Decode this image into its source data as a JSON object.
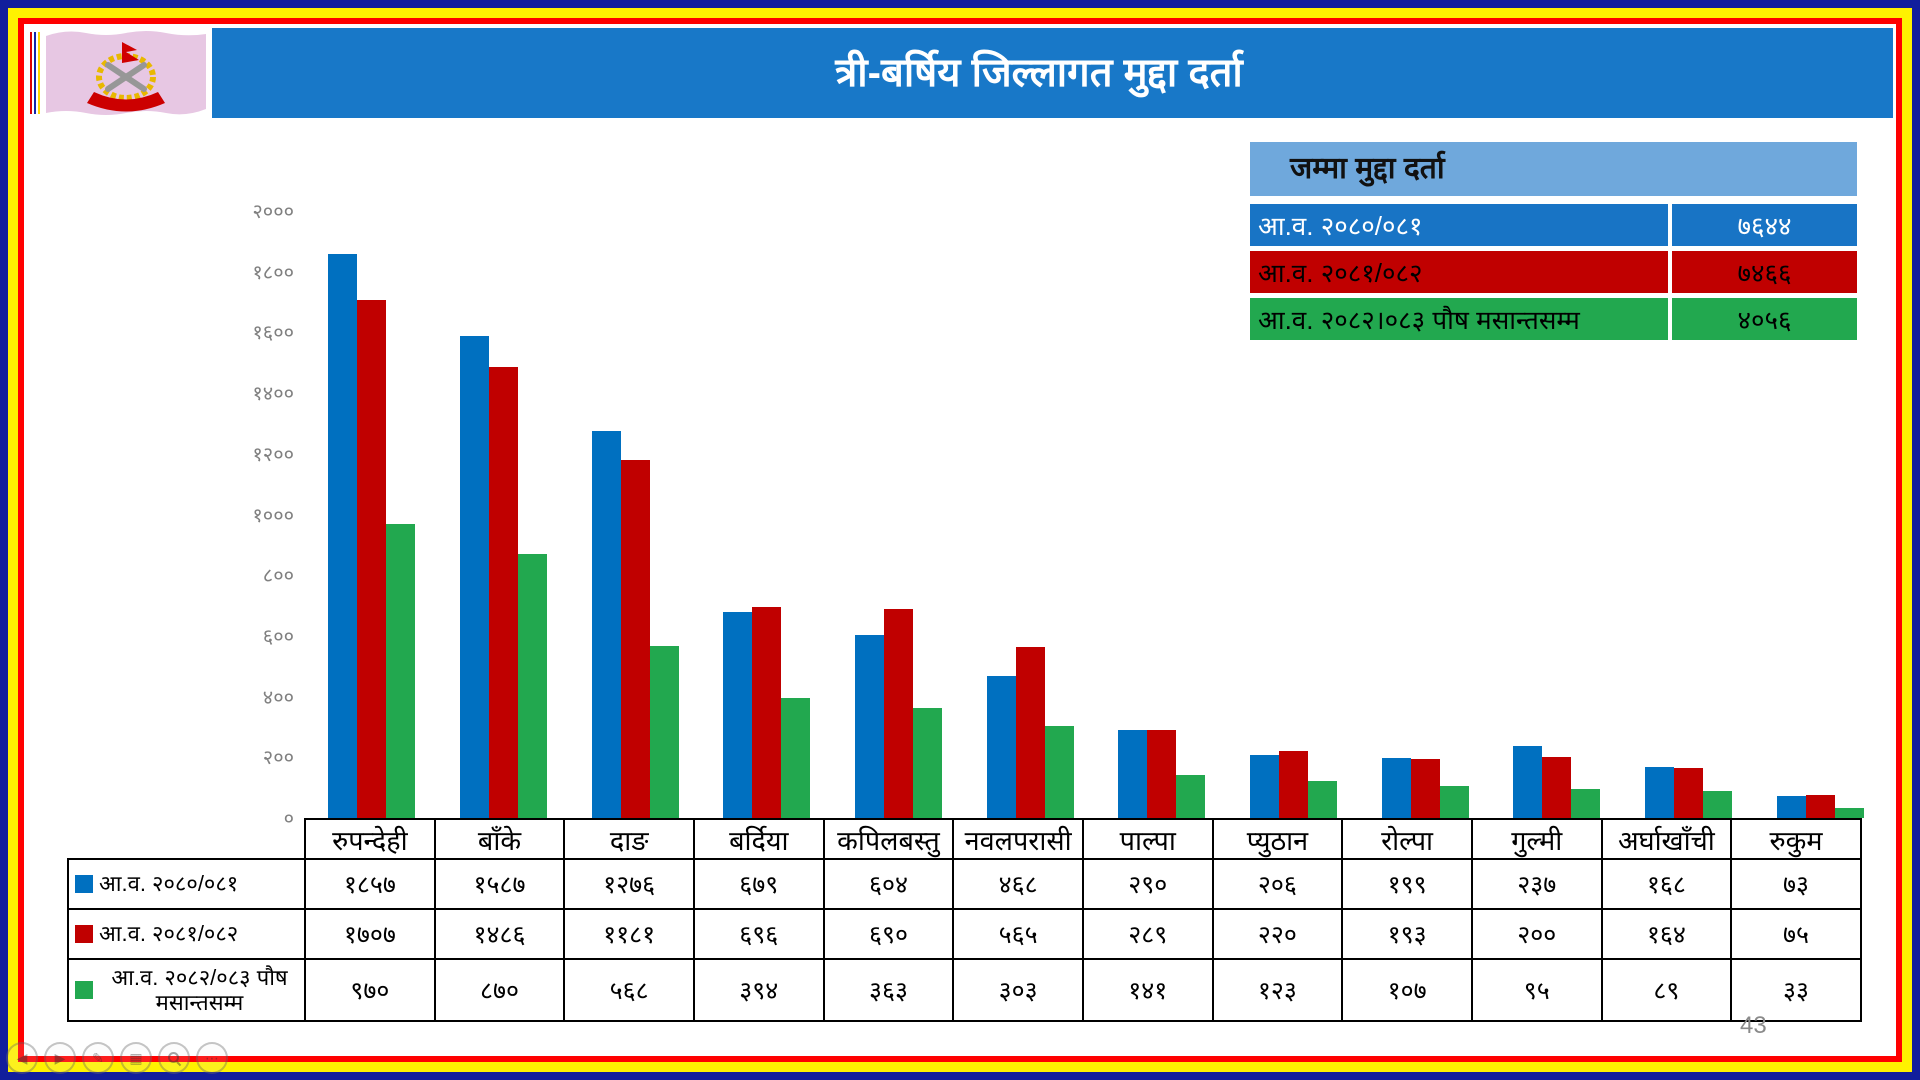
{
  "title": "त्री-बर्षिय जिल्लागत मुद्दा दर्ता",
  "page_number": "43",
  "colors": {
    "border_navy": "#121E9C",
    "border_yellow": "#FFF200",
    "border_red": "#FF0000",
    "banner_blue": "#1878C8",
    "series_blue": "#0070C0",
    "series_red": "#C00000",
    "series_green": "#22A84F",
    "summary_header_bg": "#6FA8DC",
    "axis_label_gray": "#808080"
  },
  "logo": {
    "name": "nepal-police-flag",
    "flag_color": "#E7C7E3",
    "stripe_colors": [
      "#E00000",
      "#1226AA",
      "#FFD800"
    ]
  },
  "summary_table": {
    "header": "जम्मा मुद्दा दर्ता",
    "rows": [
      {
        "label": "आ.व. २०८०/०८१",
        "value": "७६४४",
        "bg": "#1874C5",
        "text": "#FFFFFF"
      },
      {
        "label": "आ.व. २०८१/०८२",
        "value": "७४६६",
        "bg": "#C00000",
        "text": "#000000"
      },
      {
        "label": "आ.व. २०८२।०८३ पौष मसान्तसम्म",
        "value": "४०५६",
        "bg": "#22A84F",
        "text": "#000000"
      }
    ]
  },
  "chart_data": {
    "type": "bar",
    "title": "त्री-बर्षिय जिल्लागत मुद्दा दर्ता",
    "categories": [
      "रुपन्देही",
      "बाँके",
      "दाङ",
      "बर्दिया",
      "कपिलबस्तु",
      "नवलपरासी",
      "पाल्पा",
      "प्युठान",
      "रोल्पा",
      "गुल्मी",
      "अर्घाखाँची",
      "रुकुम"
    ],
    "series": [
      {
        "name": "आ.व. २०८०/०८१",
        "color": "#0070C0",
        "values": [
          1857,
          1587,
          1276,
          679,
          604,
          468,
          290,
          206,
          199,
          237,
          168,
          73
        ],
        "values_np": [
          "१८५७",
          "१५८७",
          "१२७६",
          "६७९",
          "६०४",
          "४६८",
          "२९०",
          "२०६",
          "१९९",
          "२३७",
          "१६८",
          "७३"
        ]
      },
      {
        "name": "आ.व. २०८१/०८२",
        "color": "#C00000",
        "values": [
          1707,
          1486,
          1181,
          696,
          690,
          565,
          289,
          220,
          193,
          200,
          164,
          75
        ],
        "values_np": [
          "१७०७",
          "१४८६",
          "११८१",
          "६९६",
          "६९०",
          "५६५",
          "२८९",
          "२२०",
          "१९३",
          "२००",
          "१६४",
          "७५"
        ]
      },
      {
        "name": "आ.व. २०८२/०८३ पौष मसान्तसम्म",
        "color": "#22A84F",
        "values": [
          970,
          870,
          568,
          394,
          363,
          303,
          141,
          123,
          107,
          95,
          89,
          33
        ],
        "values_np": [
          "९७०",
          "८७०",
          "५६८",
          "३९४",
          "३६३",
          "३०३",
          "१४१",
          "१२३",
          "१०७",
          "९५",
          "८९",
          "३३"
        ]
      }
    ],
    "ylim": [
      0,
      2000
    ],
    "y_ticks": [
      {
        "v": 2000,
        "label": "२०००"
      },
      {
        "v": 1800,
        "label": "१८००"
      },
      {
        "v": 1600,
        "label": "१६००"
      },
      {
        "v": 1400,
        "label": "१४००"
      },
      {
        "v": 1200,
        "label": "१२००"
      },
      {
        "v": 1000,
        "label": "१०००"
      },
      {
        "v": 800,
        "label": "८००"
      },
      {
        "v": 600,
        "label": "६००"
      },
      {
        "v": 400,
        "label": "४००"
      },
      {
        "v": 200,
        "label": "२००"
      },
      {
        "v": 0,
        "label": "०"
      }
    ],
    "grid": false,
    "legend_position": "table-left-column"
  },
  "controls": {
    "icons": [
      {
        "name": "previous-slide-button",
        "glyph": "◀"
      },
      {
        "name": "next-slide-button",
        "glyph": "▶"
      },
      {
        "name": "pen-tools-button",
        "glyph": "✎"
      },
      {
        "name": "see-all-slides-button",
        "glyph": "▦"
      },
      {
        "name": "zoom-button",
        "glyph": ""
      },
      {
        "name": "more-options-button",
        "glyph": "⋯"
      }
    ]
  }
}
